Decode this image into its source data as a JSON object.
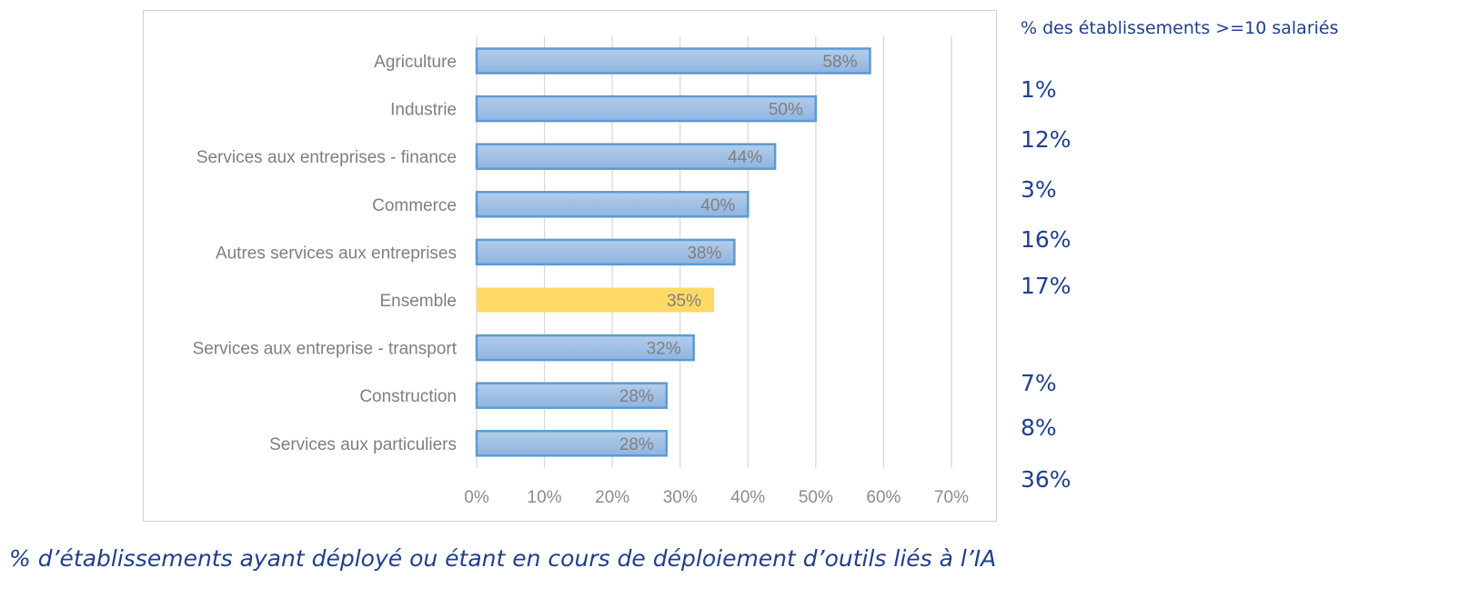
{
  "chart_data": {
    "type": "bar",
    "orientation": "horizontal",
    "categories": [
      "Agriculture",
      "Industrie",
      "Services aux entreprises - finance",
      "Commerce",
      "Autres services aux entreprises",
      "Ensemble",
      "Services aux entreprise - transport",
      "Construction",
      "Services aux particuliers"
    ],
    "values": [
      58,
      50,
      44,
      40,
      38,
      35,
      32,
      28,
      28
    ],
    "data_labels": [
      "58%",
      "50%",
      "44%",
      "40%",
      "38%",
      "35%",
      "32%",
      "28%",
      "28%"
    ],
    "highlight_category": "Ensemble",
    "xlim": [
      0,
      70
    ],
    "xticks": [
      0,
      10,
      20,
      30,
      40,
      50,
      60,
      70
    ],
    "xtick_labels": [
      "0%",
      "10%",
      "20%",
      "30%",
      "40%",
      "50%",
      "60%",
      "70%"
    ],
    "grid": "vertical",
    "colors": {
      "bar": "#9dc0e6",
      "bar_border": "#5b9bd5",
      "highlight": "#ffd966",
      "label_text": "#7f7f7f"
    }
  },
  "side_panel": {
    "title": "% des établissements >=10 salariés",
    "values": [
      {
        "category": "Agriculture",
        "value": "1%"
      },
      {
        "category": "Industrie",
        "value": "12%"
      },
      {
        "category": "Services aux entreprises - finance",
        "value": "3%"
      },
      {
        "category": "Commerce",
        "value": "16%"
      },
      {
        "category": "Autres services aux entreprises",
        "value": "17%"
      },
      {
        "category": "Services aux entreprise - transport",
        "value": "7%"
      },
      {
        "category": "Construction",
        "value": "8%"
      },
      {
        "category": "Services aux particuliers",
        "value": "36%"
      }
    ],
    "color": "#1f3f8f"
  },
  "caption": "% d’établissements ayant déployé ou étant en cours de déploiement d’outils liés à l’IA"
}
